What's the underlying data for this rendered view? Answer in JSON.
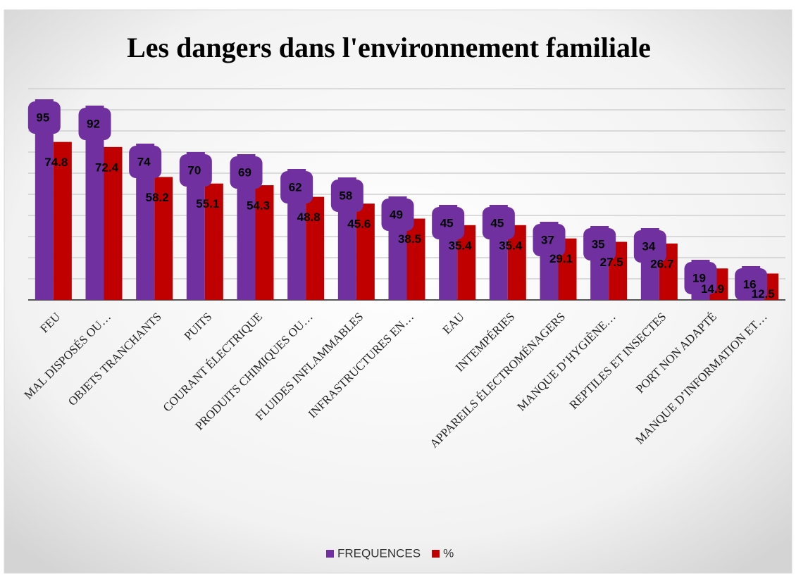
{
  "chart_data": {
    "type": "bar",
    "title": "Les dangers dans l'environnement familiale",
    "categories": [
      "FEU",
      "MAL DISPOSÉS OU…",
      "OBJETS TRANCHANTS",
      "PUITS",
      "COURANT ÉLECTRIQUE",
      "PRODUITS CHIMIQUES OU…",
      "FLUIDES INFLAMMABLES",
      "INFRASTRUCTURES EN…",
      "EAU",
      "INTEMPÉRIES",
      "APPAREILS ÉLECTROMÉNAGERS",
      "MANQUE D’HYGIÈNE…",
      "REPTILES ET INSECTES",
      "PORT NON ADAPTÉ",
      "MANQUE D’INFORMATION ET…"
    ],
    "series": [
      {
        "name": "FREQUENCES",
        "color": "#7030a0",
        "values": [
          95,
          92,
          74,
          70,
          69,
          62,
          58,
          49,
          45,
          45,
          37,
          35,
          34,
          19,
          16
        ]
      },
      {
        "name": "%",
        "color": "#c00000",
        "values": [
          74.8,
          72.4,
          58.2,
          55.1,
          54.3,
          48.8,
          45.6,
          38.5,
          35.4,
          35.4,
          29.1,
          27.5,
          26.7,
          14.9,
          12.5
        ]
      }
    ],
    "ylim": [
      0,
      100
    ],
    "yticks": [
      0,
      10,
      20,
      30,
      40,
      50,
      60,
      70,
      80,
      90,
      100
    ],
    "grid": true,
    "legend": "bottom"
  }
}
